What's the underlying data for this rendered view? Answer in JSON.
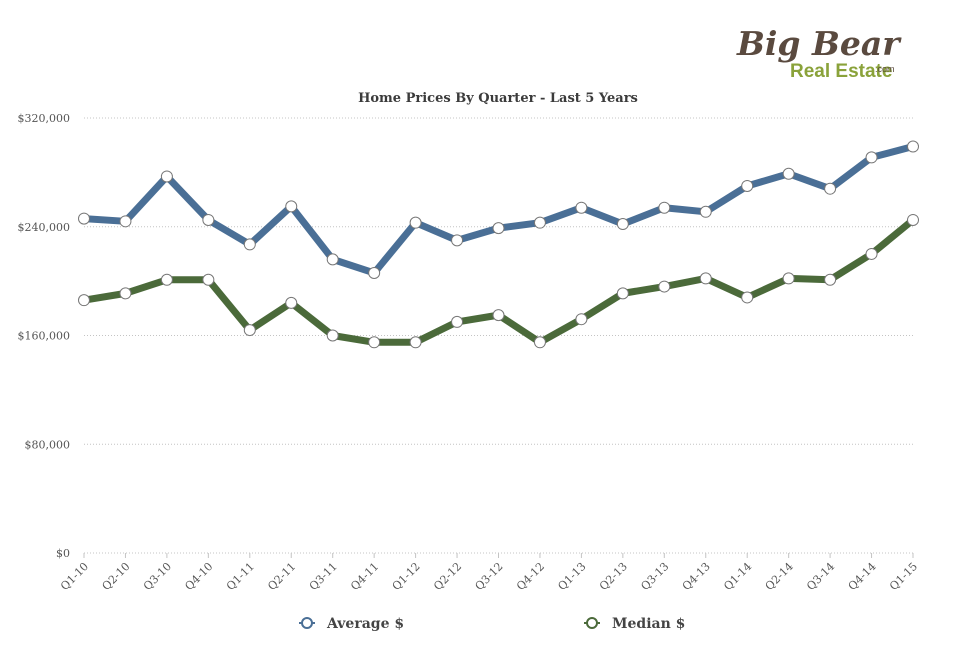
{
  "logo": {
    "line1": "Big Bear",
    "line2": "Real Estate",
    "suffix": ".com"
  },
  "chart_data": {
    "type": "line",
    "title": "Home Prices By Quarter - Last 5 Years",
    "xlabel": "",
    "ylabel": "",
    "categories": [
      "Q1-10",
      "Q2-10",
      "Q3-10",
      "Q4-10",
      "Q1-11",
      "Q2-11",
      "Q3-11",
      "Q4-11",
      "Q1-12",
      "Q2-12",
      "Q3-12",
      "Q4-12",
      "Q1-13",
      "Q2-13",
      "Q3-13",
      "Q4-13",
      "Q1-14",
      "Q2-14",
      "Q3-14",
      "Q4-14",
      "Q1-15"
    ],
    "y_ticks": [
      0,
      80000,
      160000,
      240000,
      320000
    ],
    "y_tick_labels": [
      "$0",
      "$80,000",
      "$160,000",
      "$240,000",
      "$320,000"
    ],
    "ylim": [
      0,
      320000
    ],
    "grid": true,
    "legend_position": "bottom",
    "series": [
      {
        "name": "Average $",
        "color": "#4a6f96",
        "values": [
          246000,
          244000,
          277000,
          245000,
          227000,
          255000,
          216000,
          206000,
          243000,
          230000,
          239000,
          243000,
          254000,
          242000,
          254000,
          251000,
          270000,
          279000,
          268000,
          291000,
          299000
        ]
      },
      {
        "name": "Median $",
        "color": "#4b6a3a",
        "values": [
          186000,
          191000,
          201000,
          201000,
          164000,
          184000,
          160000,
          155000,
          155000,
          170000,
          175000,
          155000,
          172000,
          191000,
          196000,
          202000,
          188000,
          202000,
          201000,
          220000,
          245000
        ]
      }
    ]
  }
}
